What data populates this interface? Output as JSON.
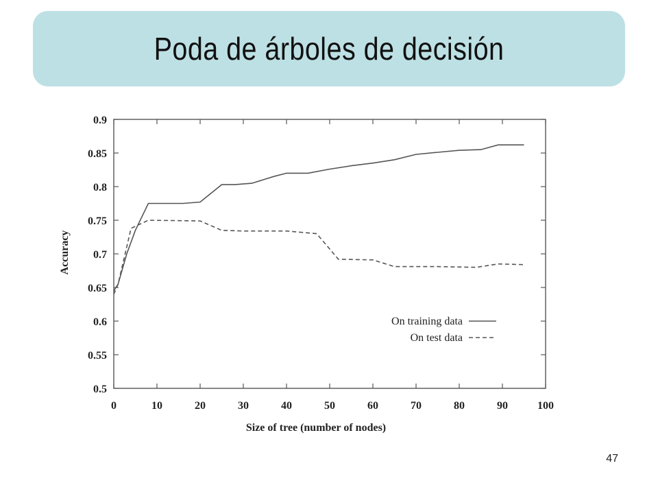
{
  "slide": {
    "title": "Poda de árboles de decisión",
    "page_number": "47"
  },
  "chart_data": {
    "type": "line",
    "title": "",
    "xlabel": "Size of tree (number of nodes)",
    "ylabel": "Accuracy",
    "xlim": [
      0,
      100
    ],
    "ylim": [
      0.5,
      0.9
    ],
    "x_ticks": [
      0,
      10,
      20,
      30,
      40,
      50,
      60,
      70,
      80,
      90,
      100
    ],
    "y_ticks": [
      0.5,
      0.55,
      0.6,
      0.65,
      0.7,
      0.75,
      0.8,
      0.85,
      0.9
    ],
    "x_tick_labels": [
      "0",
      "10",
      "20",
      "30",
      "40",
      "50",
      "60",
      "70",
      "80",
      "90",
      "100"
    ],
    "y_tick_labels": [
      "0.5",
      "0.55",
      "0.6",
      "0.65",
      "0.7",
      "0.75",
      "0.8",
      "0.85",
      "0.9"
    ],
    "grid": false,
    "legend": "lower-right",
    "series": [
      {
        "name": "On training data",
        "style": "solid",
        "color": "#555555",
        "points": [
          [
            0,
            0.645
          ],
          [
            1,
            0.655
          ],
          [
            3,
            0.7
          ],
          [
            5,
            0.735
          ],
          [
            8,
            0.775
          ],
          [
            12,
            0.775
          ],
          [
            16,
            0.775
          ],
          [
            20,
            0.777
          ],
          [
            25,
            0.803
          ],
          [
            28,
            0.803
          ],
          [
            32,
            0.805
          ],
          [
            37,
            0.815
          ],
          [
            40,
            0.82
          ],
          [
            45,
            0.82
          ],
          [
            50,
            0.826
          ],
          [
            55,
            0.831
          ],
          [
            60,
            0.835
          ],
          [
            65,
            0.84
          ],
          [
            70,
            0.848
          ],
          [
            75,
            0.851
          ],
          [
            80,
            0.854
          ],
          [
            85,
            0.855
          ],
          [
            89,
            0.862
          ],
          [
            95,
            0.862
          ]
        ]
      },
      {
        "name": "On test data",
        "style": "dashed",
        "color": "#555555",
        "points": [
          [
            0,
            0.64
          ],
          [
            1,
            0.655
          ],
          [
            4,
            0.738
          ],
          [
            8,
            0.75
          ],
          [
            20,
            0.749
          ],
          [
            25,
            0.735
          ],
          [
            30,
            0.734
          ],
          [
            40,
            0.734
          ],
          [
            47,
            0.73
          ],
          [
            52,
            0.692
          ],
          [
            60,
            0.691
          ],
          [
            65,
            0.681
          ],
          [
            75,
            0.681
          ],
          [
            84,
            0.68
          ],
          [
            89,
            0.685
          ],
          [
            95,
            0.684
          ]
        ]
      }
    ]
  }
}
